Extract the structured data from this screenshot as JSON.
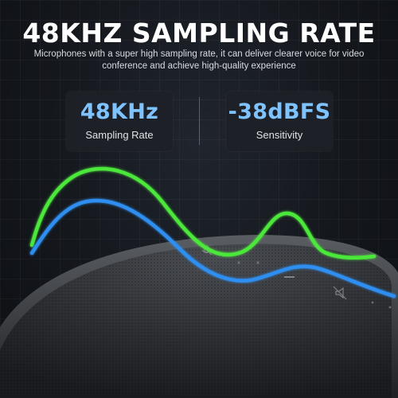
{
  "headline": "48KHZ SAMPLING RATE",
  "subtext": "Microphones with a super high sampling rate, it can deliver clearer voice for video conference and achieve high-quality experience",
  "specs": [
    {
      "value": "48KHz",
      "label": "Sampling Rate"
    },
    {
      "value": "-38dBFS",
      "label": "Sensitivity"
    }
  ],
  "colors": {
    "accent_blue": "#7ec3ff",
    "wave_green": "#4be83a",
    "wave_blue": "#2f8ff0"
  },
  "icons": [
    "mic-mute-icon",
    "minus-icon",
    "speaker-mute-icon"
  ]
}
